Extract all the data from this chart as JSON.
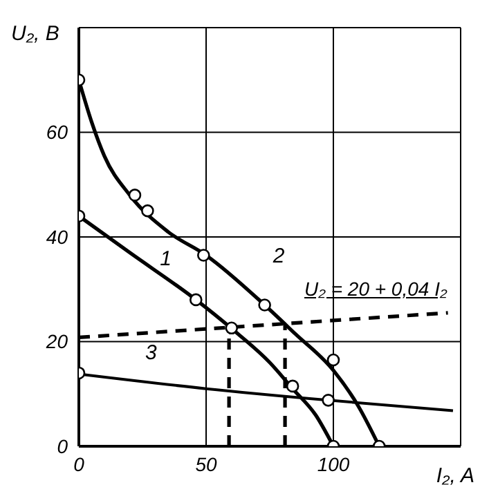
{
  "chart_data": {
    "type": "line",
    "xlabel": "I₂, A",
    "ylabel": "U₂, В",
    "xlim": [
      0,
      150
    ],
    "xticks": [
      0,
      50,
      100
    ],
    "ylim": [
      0,
      80
    ],
    "yticks": [
      0,
      20,
      40,
      60
    ],
    "grid": true,
    "legend": false,
    "annotations": [
      "U₂ = 20 + 0,04 I₂"
    ],
    "series": [
      {
        "name": "1",
        "color": "#000000",
        "marker": "none",
        "line_style": "solid",
        "x": [
          0,
          20,
          46,
          60,
          75,
          84,
          93,
          100
        ],
        "values": [
          44,
          37,
          28,
          22.5,
          16,
          11,
          6,
          0
        ]
      },
      {
        "name": "2",
        "color": "#000000",
        "marker": "none",
        "line_style": "solid",
        "x": [
          0,
          5,
          10,
          20,
          35,
          50,
          73,
          85,
          100,
          110,
          118
        ],
        "values": [
          70,
          62,
          55.5,
          48,
          41,
          36.5,
          27,
          21.5,
          14.5,
          7.5,
          0
        ]
      },
      {
        "name": "3",
        "color": "#000000",
        "marker": "none",
        "line_style": "solid",
        "x": [
          0,
          50,
          98,
          147
        ],
        "values": [
          13.8,
          11,
          8.8,
          6.8
        ]
      },
      {
        "type": "line",
        "color": "#000000",
        "marker": "none",
        "line_style": "dashed",
        "x": [
          0,
          145
        ],
        "values": [
          20.8,
          25.5
        ]
      },
      {
        "type": "line",
        "color": "#000000",
        "marker": "none",
        "line_style": "dashed",
        "x": [
          59,
          59
        ],
        "values": [
          0,
          22.4
        ]
      },
      {
        "type": "line",
        "color": "#000000",
        "marker": "none",
        "line_style": "dashed",
        "x": [
          81,
          81
        ],
        "values": [
          0,
          23.3
        ]
      },
      {
        "type": "scatter",
        "color": "#000000",
        "marker": "circle",
        "x": [
          0,
          46,
          60,
          84,
          100
        ],
        "values": [
          44,
          28,
          22.6,
          11.5,
          0
        ]
      },
      {
        "type": "scatter",
        "color": "#000000",
        "marker": "circle",
        "x": [
          0,
          22,
          27,
          49,
          73,
          100,
          118
        ],
        "values": [
          70,
          48,
          45,
          36.5,
          27,
          16.5,
          0
        ]
      },
      {
        "type": "scatter",
        "color": "#000000",
        "marker": "circle",
        "x": [
          0,
          98
        ],
        "values": [
          14,
          8.8
        ]
      }
    ]
  }
}
